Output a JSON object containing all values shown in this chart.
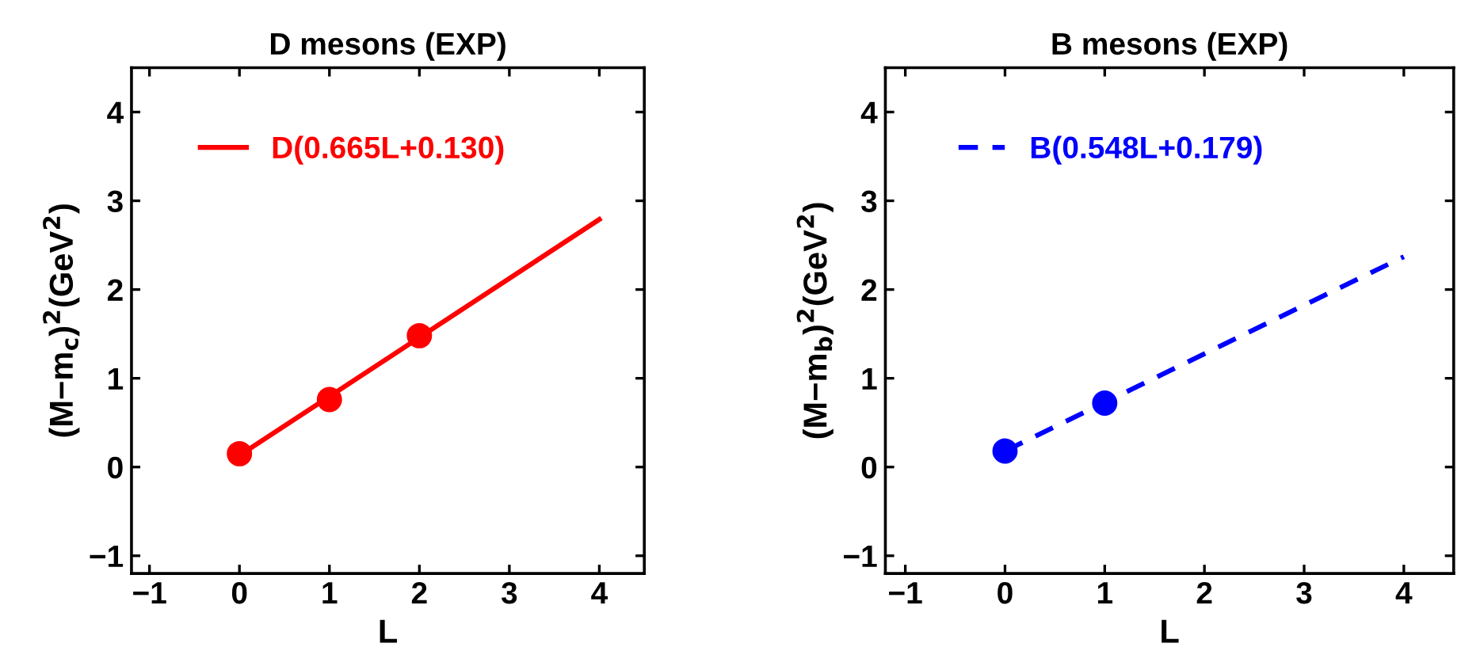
{
  "chart_data": [
    {
      "type": "line",
      "title": "D mesons (EXP)",
      "xlabel": "L",
      "ylabel": "(M−m$_{c}$)$^{2}$(GeV$^{2}$)",
      "xlim": [
        -1.2,
        4.5
      ],
      "ylim": [
        -1.2,
        4.5
      ],
      "xticks": [
        -1,
        0,
        1,
        2,
        3,
        4
      ],
      "yticks": [
        -1,
        0,
        1,
        2,
        3,
        4
      ],
      "legend": "top left",
      "grid": false,
      "series": [
        {
          "type": "scatter",
          "color": "#ff0000",
          "x": [
            0,
            1,
            2
          ],
          "values": [
            0.15,
            0.76,
            1.48
          ],
          "marker": "circle"
        },
        {
          "name": "D(0.665L+0.130)",
          "color": "#ff0000",
          "x": [
            0,
            4
          ],
          "values": [
            0.13,
            2.79
          ],
          "line_style": "solid"
        }
      ]
    },
    {
      "type": "line",
      "title": "B mesons (EXP)",
      "xlabel": "L",
      "ylabel": "(M−m$_{b}$)$^{2}$(GeV$^{2}$)",
      "xlim": [
        -1.2,
        4.5
      ],
      "ylim": [
        -1.2,
        4.5
      ],
      "xticks": [
        -1,
        0,
        1,
        2,
        3,
        4
      ],
      "yticks": [
        -1,
        0,
        1,
        2,
        3,
        4
      ],
      "legend": "top left",
      "grid": false,
      "series": [
        {
          "type": "scatter",
          "color": "#0000ff",
          "x": [
            0,
            1
          ],
          "values": [
            0.18,
            0.72
          ],
          "marker": "circle"
        },
        {
          "name": "B(0.548L+0.179)",
          "color": "#0000ff",
          "x": [
            0,
            4
          ],
          "values": [
            0.18,
            2.37
          ],
          "line_style": "dashed"
        }
      ]
    }
  ]
}
